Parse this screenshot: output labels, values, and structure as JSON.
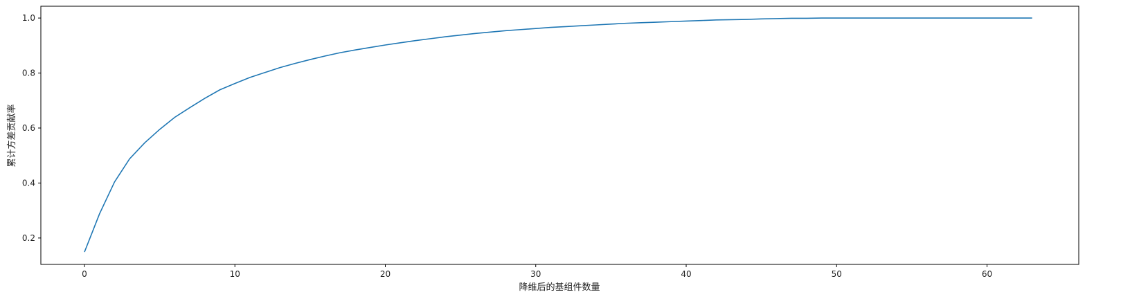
{
  "chart_data": {
    "type": "line",
    "title": "",
    "xlabel": "降维后的基组件数量",
    "ylabel": "累计方差贡献率",
    "xlim": [
      -2.9,
      66.1
    ],
    "ylim": [
      0.104,
      1.043
    ],
    "xticks": [
      0,
      10,
      20,
      30,
      40,
      50,
      60
    ],
    "xtick_labels": [
      "0",
      "10",
      "20",
      "30",
      "40",
      "50",
      "60"
    ],
    "yticks": [
      0.2,
      0.4,
      0.6,
      0.8,
      1.0
    ],
    "ytick_labels": [
      "0.2",
      "0.4",
      "0.6",
      "0.8",
      "1.0"
    ],
    "grid": false,
    "color": "#1f77b4",
    "series": [
      {
        "x": [
          0,
          1,
          2,
          3,
          4,
          5,
          6,
          7,
          8,
          9,
          10,
          11,
          12,
          13,
          14,
          15,
          16,
          17,
          18,
          19,
          20,
          21,
          22,
          23,
          24,
          25,
          26,
          27,
          28,
          29,
          30,
          31,
          32,
          33,
          34,
          35,
          36,
          37,
          38,
          39,
          40,
          41,
          42,
          43,
          44,
          45,
          46,
          47,
          48,
          49,
          50,
          51,
          52,
          53,
          54,
          55,
          56,
          57,
          58,
          59,
          60,
          61,
          62,
          63
        ],
        "values": [
          0.149,
          0.288,
          0.404,
          0.488,
          0.546,
          0.595,
          0.639,
          0.674,
          0.708,
          0.739,
          0.762,
          0.784,
          0.802,
          0.82,
          0.835,
          0.849,
          0.862,
          0.874,
          0.884,
          0.893,
          0.902,
          0.91,
          0.918,
          0.925,
          0.932,
          0.938,
          0.944,
          0.949,
          0.954,
          0.958,
          0.962,
          0.966,
          0.969,
          0.972,
          0.975,
          0.978,
          0.981,
          0.983,
          0.985,
          0.987,
          0.989,
          0.991,
          0.993,
          0.994,
          0.995,
          0.997,
          0.998,
          0.999,
          0.999,
          1.0,
          1.0,
          1.0,
          1.0,
          1.0,
          1.0,
          1.0,
          1.0,
          1.0,
          1.0,
          1.0,
          1.0,
          1.0,
          1.0,
          1.0
        ]
      }
    ]
  }
}
